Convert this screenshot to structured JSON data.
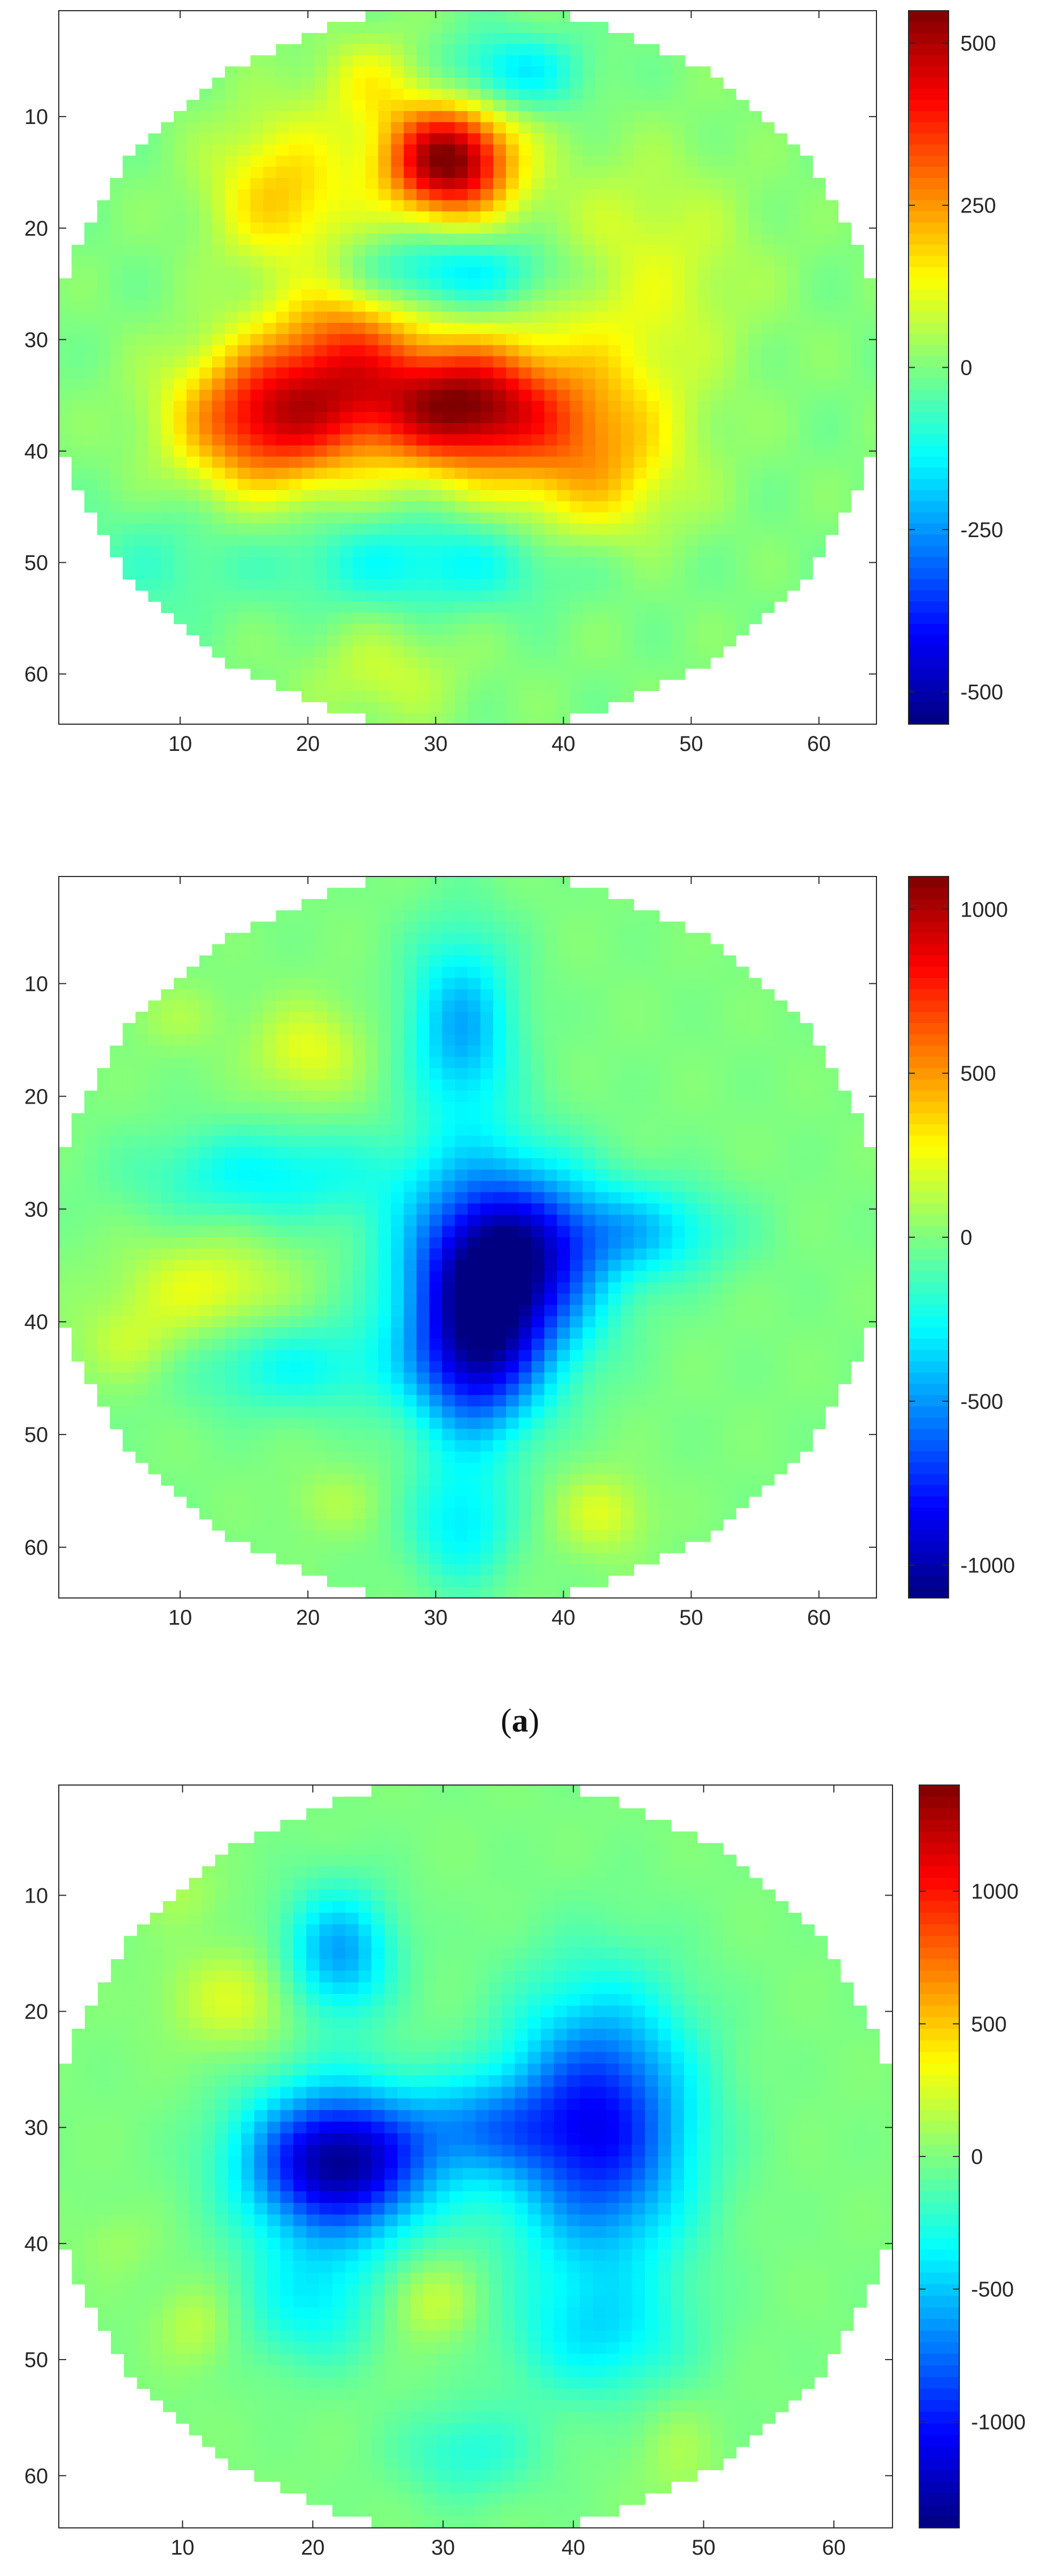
{
  "caption": {
    "open": "(",
    "letter": "a",
    "close": ")"
  },
  "chart_data": [
    {
      "type": "heatmap",
      "title": "",
      "xlabel": "",
      "ylabel": "",
      "xlim": [
        0.5,
        64.5
      ],
      "ylim": [
        0.5,
        64.5
      ],
      "y_reversed": true,
      "x_ticks": [
        10,
        20,
        30,
        40,
        50,
        60
      ],
      "y_ticks": [
        10,
        20,
        30,
        40,
        50,
        60
      ],
      "clim": [
        -550,
        550
      ],
      "colorbar_ticks": [
        500,
        250,
        0,
        -250,
        -500
      ],
      "colormap": "jet",
      "mask": "circle",
      "blobs": [
        {
          "x": 31,
          "y": 14,
          "sx": 3.5,
          "sy": 3.5,
          "amp": 560
        },
        {
          "x": 32,
          "y": 36,
          "sx": 5,
          "sy": 4,
          "amp": 520
        },
        {
          "x": 17,
          "y": 37,
          "sx": 5,
          "sy": 4.5,
          "amp": 420
        },
        {
          "x": 23,
          "y": 31,
          "sx": 4,
          "sy": 5,
          "amp": 260
        },
        {
          "x": 42,
          "y": 40,
          "sx": 5,
          "sy": 6,
          "amp": 230
        },
        {
          "x": 46,
          "y": 24,
          "sx": 6,
          "sy": 7,
          "amp": 110
        },
        {
          "x": 18,
          "y": 17,
          "sx": 4,
          "sy": 5,
          "amp": 190
        },
        {
          "x": 25,
          "y": 7,
          "sx": 3,
          "sy": 3,
          "amp": 120
        },
        {
          "x": 31,
          "y": 24,
          "sx": 7,
          "sy": 2.5,
          "amp": -170
        },
        {
          "x": 36,
          "y": 6,
          "sx": 4,
          "sy": 2.5,
          "amp": -160
        },
        {
          "x": 30,
          "y": 50,
          "sx": 9,
          "sy": 3,
          "amp": -140
        },
        {
          "x": 8,
          "y": 50,
          "sx": 4,
          "sy": 4,
          "amp": -60
        },
        {
          "x": 26,
          "y": 60,
          "sx": 4,
          "sy": 3,
          "amp": 80
        }
      ]
    },
    {
      "type": "heatmap",
      "title": "",
      "xlabel": "",
      "ylabel": "",
      "xlim": [
        0.5,
        64.5
      ],
      "ylim": [
        0.5,
        64.5
      ],
      "y_reversed": true,
      "x_ticks": [
        10,
        20,
        30,
        40,
        50,
        60
      ],
      "y_ticks": [
        10,
        20,
        30,
        40,
        50,
        60
      ],
      "clim": [
        -1100,
        1100
      ],
      "colorbar_ticks": [
        1000,
        500,
        0,
        -500,
        -1000
      ],
      "colormap": "jet",
      "mask": "circle",
      "blobs": [
        {
          "x": 35,
          "y": 35,
          "sx": 5,
          "sy": 6,
          "amp": -1150
        },
        {
          "x": 33,
          "y": 44,
          "sx": 3.5,
          "sy": 5,
          "amp": -650
        },
        {
          "x": 32,
          "y": 14,
          "sx": 3,
          "sy": 6,
          "amp": -450
        },
        {
          "x": 46,
          "y": 32,
          "sx": 5,
          "sy": 3,
          "amp": -350
        },
        {
          "x": 17,
          "y": 27,
          "sx": 7,
          "sy": 3,
          "amp": -280
        },
        {
          "x": 19,
          "y": 44,
          "sx": 6,
          "sy": 3,
          "amp": -250
        },
        {
          "x": 32,
          "y": 58,
          "sx": 3,
          "sy": 4,
          "amp": -300
        },
        {
          "x": 20,
          "y": 16,
          "sx": 3,
          "sy": 3,
          "amp": 220
        },
        {
          "x": 12,
          "y": 37,
          "sx": 4.5,
          "sy": 3,
          "amp": 230
        },
        {
          "x": 6,
          "y": 42,
          "sx": 3,
          "sy": 2.5,
          "amp": 150
        },
        {
          "x": 43,
          "y": 57,
          "sx": 2.5,
          "sy": 2.5,
          "amp": 200
        },
        {
          "x": 10,
          "y": 13,
          "sx": 2.5,
          "sy": 2,
          "amp": 90
        },
        {
          "x": 22,
          "y": 56,
          "sx": 2.5,
          "sy": 2,
          "amp": 100
        }
      ]
    },
    {
      "type": "heatmap",
      "title": "",
      "xlabel": "",
      "ylabel": "",
      "xlim": [
        0.5,
        64.5
      ],
      "ylim": [
        0.5,
        64.5
      ],
      "y_reversed": true,
      "x_ticks": [
        10,
        20,
        30,
        40,
        50,
        60
      ],
      "y_ticks": [
        10,
        20,
        30,
        40,
        50,
        60
      ],
      "clim": [
        -1400,
        1400
      ],
      "colorbar_ticks": [
        1000,
        500,
        0,
        -500,
        -1000
      ],
      "colormap": "jet",
      "mask": "circle",
      "blobs": [
        {
          "x": 22,
          "y": 33,
          "sx": 5,
          "sy": 4.5,
          "amp": -1350
        },
        {
          "x": 42,
          "y": 30,
          "sx": 5,
          "sy": 8,
          "amp": -1050
        },
        {
          "x": 22,
          "y": 15,
          "sx": 3,
          "sy": 4,
          "amp": -600
        },
        {
          "x": 33,
          "y": 30,
          "sx": 4,
          "sy": 3,
          "amp": -450
        },
        {
          "x": 20,
          "y": 45,
          "sx": 4,
          "sy": 4,
          "amp": -350
        },
        {
          "x": 42,
          "y": 48,
          "sx": 5,
          "sy": 4,
          "amp": -350
        },
        {
          "x": 32,
          "y": 58,
          "sx": 4,
          "sy": 3,
          "amp": -250
        },
        {
          "x": 14,
          "y": 19,
          "sx": 3.5,
          "sy": 3,
          "amp": 250
        },
        {
          "x": 29,
          "y": 45,
          "sx": 2.5,
          "sy": 2.5,
          "amp": 230
        },
        {
          "x": 11,
          "y": 47,
          "sx": 2,
          "sy": 2.5,
          "amp": 180
        },
        {
          "x": 10,
          "y": 10,
          "sx": 2,
          "sy": 2,
          "amp": 110
        },
        {
          "x": 48,
          "y": 58,
          "sx": 2,
          "sy": 3,
          "amp": 120
        },
        {
          "x": 5,
          "y": 40,
          "sx": 2,
          "sy": 2,
          "amp": 80
        }
      ]
    }
  ]
}
